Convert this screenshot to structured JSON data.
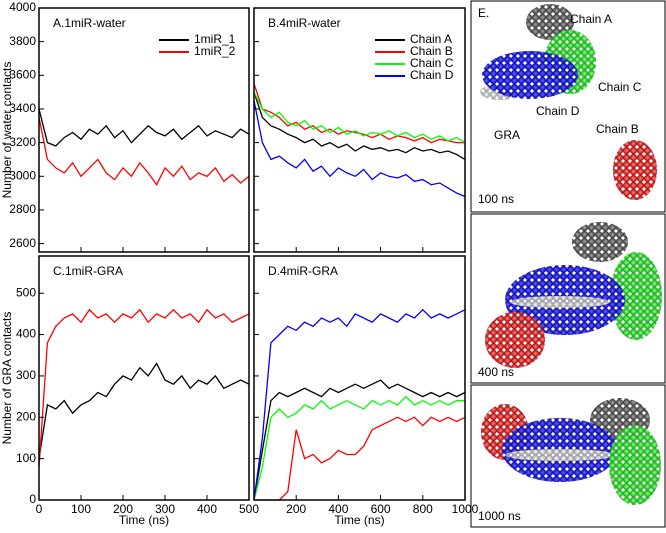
{
  "chart_data": [
    {
      "type": "line",
      "title": "A.1miR-water",
      "y_label": "Number of water contacts",
      "legend": "upper right",
      "xtick_labels": false,
      "ytick_labels": true,
      "x": [
        0,
        20,
        40,
        60,
        80,
        100,
        120,
        140,
        160,
        180,
        200,
        220,
        240,
        260,
        280,
        300,
        320,
        340,
        360,
        380,
        400,
        420,
        440,
        460,
        480,
        500
      ],
      "series": [
        {
          "name": "1miR_1",
          "color": "#000000",
          "values": [
            3400,
            3200,
            3180,
            3230,
            3260,
            3220,
            3280,
            3250,
            3300,
            3230,
            3270,
            3200,
            3250,
            3300,
            3260,
            3240,
            3280,
            3220,
            3260,
            3300,
            3240,
            3270,
            3250,
            3230,
            3280,
            3250
          ]
        },
        {
          "name": "1miR_2",
          "color": "#ff0000",
          "values": [
            3350,
            3100,
            3050,
            3020,
            3080,
            3000,
            3050,
            3100,
            3020,
            2980,
            3050,
            3000,
            3080,
            3020,
            2950,
            3050,
            3000,
            3060,
            2980,
            3020,
            3000,
            3050,
            2970,
            3010,
            2960,
            3000
          ]
        }
      ],
      "xlim": [
        0,
        500
      ],
      "xticks": [
        0,
        100,
        200,
        300,
        400,
        500
      ],
      "ylim": [
        2550,
        4000
      ],
      "yticks": [
        2600,
        2800,
        3000,
        3200,
        3400,
        3600,
        3800,
        4000
      ]
    },
    {
      "type": "line",
      "title": "B.4miR-water",
      "legend": "upper right",
      "xtick_labels": false,
      "ytick_labels": false,
      "x": [
        0,
        40,
        80,
        120,
        160,
        200,
        240,
        280,
        320,
        360,
        400,
        440,
        480,
        520,
        560,
        600,
        640,
        680,
        720,
        760,
        800,
        840,
        880,
        920,
        960,
        1000
      ],
      "series": [
        {
          "name": "Chain A",
          "color": "#000000",
          "values": [
            3500,
            3350,
            3300,
            3280,
            3250,
            3230,
            3200,
            3220,
            3180,
            3200,
            3170,
            3190,
            3150,
            3180,
            3160,
            3170,
            3150,
            3160,
            3140,
            3170,
            3150,
            3160,
            3140,
            3150,
            3130,
            3100
          ]
        },
        {
          "name": "Chain B",
          "color": "#ff0000",
          "values": [
            3550,
            3400,
            3380,
            3350,
            3300,
            3320,
            3280,
            3300,
            3260,
            3280,
            3250,
            3270,
            3260,
            3250,
            3230,
            3250,
            3220,
            3240,
            3230,
            3210,
            3230,
            3200,
            3220,
            3210,
            3200,
            3200
          ]
        },
        {
          "name": "Chain C",
          "color": "#00ff00",
          "values": [
            3500,
            3400,
            3350,
            3380,
            3320,
            3300,
            3330,
            3280,
            3300,
            3260,
            3290,
            3250,
            3270,
            3240,
            3260,
            3250,
            3270,
            3240,
            3260,
            3230,
            3250,
            3220,
            3240,
            3210,
            3230,
            3200
          ]
        },
        {
          "name": "Chain D",
          "color": "#0000ff",
          "values": [
            3450,
            3200,
            3100,
            3120,
            3080,
            3050,
            3100,
            3030,
            3060,
            3000,
            3050,
            3020,
            3000,
            3040,
            2980,
            3020,
            3000,
            2990,
            3010,
            2970,
            2980,
            2950,
            2960,
            2930,
            2900,
            2880
          ]
        }
      ],
      "xlim": [
        0,
        1000
      ],
      "xticks": [
        0,
        200,
        400,
        600,
        800,
        1000
      ],
      "ylim": [
        2550,
        4000
      ],
      "yticks": [
        2600,
        2800,
        3000,
        3200,
        3400,
        3600,
        3800,
        4000
      ]
    },
    {
      "type": "line",
      "title": "C.1miR-GRA",
      "y_label": "Number of GRA contacts",
      "x_label": "Time (ns)",
      "xtick_labels": true,
      "ytick_labels": true,
      "x": [
        0,
        20,
        40,
        60,
        80,
        100,
        120,
        140,
        160,
        180,
        200,
        220,
        240,
        260,
        280,
        300,
        320,
        340,
        360,
        380,
        400,
        420,
        440,
        460,
        480,
        500
      ],
      "series": [
        {
          "name": "1miR_1",
          "color": "#000000",
          "values": [
            100,
            230,
            220,
            240,
            210,
            230,
            240,
            260,
            250,
            280,
            300,
            290,
            320,
            300,
            330,
            290,
            280,
            300,
            270,
            290,
            280,
            300,
            270,
            280,
            290,
            280
          ]
        },
        {
          "name": "1miR_2",
          "color": "#ff0000",
          "values": [
            80,
            380,
            420,
            440,
            450,
            430,
            460,
            440,
            450,
            430,
            450,
            440,
            460,
            430,
            450,
            440,
            460,
            440,
            450,
            430,
            460,
            440,
            450,
            430,
            440,
            450
          ]
        }
      ],
      "xlim": [
        0,
        500
      ],
      "xticks": [
        0,
        100,
        200,
        300,
        400,
        500
      ],
      "ylim": [
        0,
        590
      ],
      "yticks": [
        0,
        100,
        200,
        300,
        400,
        500
      ]
    },
    {
      "type": "line",
      "title": "D.4miR-GRA",
      "x_label": "Time (ns)",
      "xtick_labels": true,
      "ytick_labels": false,
      "x": [
        0,
        40,
        80,
        120,
        160,
        200,
        240,
        280,
        320,
        360,
        400,
        440,
        480,
        520,
        560,
        600,
        640,
        680,
        720,
        760,
        800,
        840,
        880,
        920,
        960,
        1000
      ],
      "series": [
        {
          "name": "Chain A",
          "color": "#000000",
          "values": [
            0,
            120,
            240,
            260,
            250,
            260,
            270,
            260,
            250,
            270,
            260,
            270,
            280,
            270,
            280,
            290,
            270,
            280,
            270,
            260,
            250,
            260,
            250,
            260,
            250,
            260
          ]
        },
        {
          "name": "Chain B",
          "color": "#ff0000",
          "values": [
            0,
            0,
            0,
            0,
            20,
            170,
            100,
            110,
            90,
            100,
            120,
            110,
            110,
            130,
            170,
            180,
            190,
            200,
            190,
            200,
            180,
            200,
            190,
            200,
            190,
            200
          ]
        },
        {
          "name": "Chain C",
          "color": "#00ff00",
          "values": [
            0,
            80,
            200,
            220,
            200,
            210,
            230,
            220,
            240,
            220,
            230,
            240,
            230,
            220,
            240,
            230,
            240,
            230,
            250,
            230,
            240,
            230,
            240,
            230,
            240,
            240
          ]
        },
        {
          "name": "Chain D",
          "color": "#0000ff",
          "values": [
            0,
            150,
            380,
            400,
            420,
            410,
            430,
            420,
            440,
            430,
            440,
            420,
            450,
            440,
            430,
            450,
            440,
            430,
            450,
            440,
            460,
            440,
            450,
            440,
            450,
            460
          ]
        }
      ],
      "xlim": [
        0,
        1000
      ],
      "xticks": [
        200,
        400,
        600,
        800,
        1000
      ],
      "ylim": [
        0,
        590
      ],
      "yticks": [
        0,
        100,
        200,
        300,
        400,
        500
      ]
    }
  ],
  "panel_e": {
    "title": "E.",
    "labels": [
      "Chain A",
      "Chain C",
      "GRA",
      "Chain D",
      "Chain B"
    ],
    "frames": [
      "100 ns",
      "400 ns",
      "1000 ns"
    ]
  }
}
